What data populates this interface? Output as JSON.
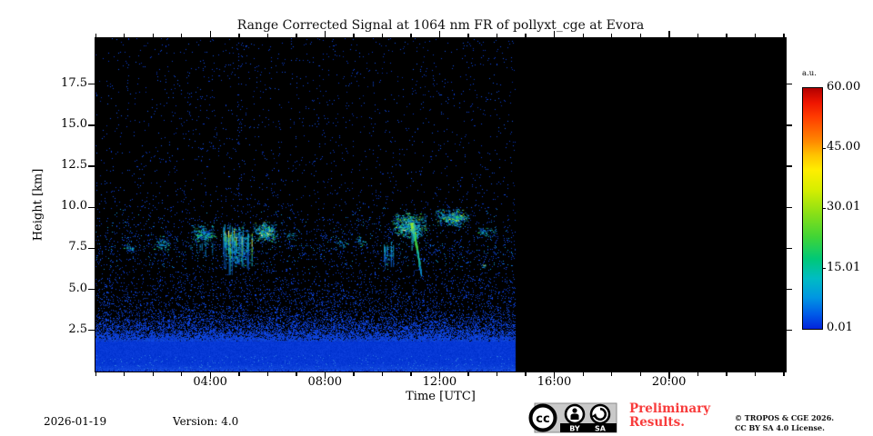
{
  "figure": {
    "footer": {
      "date": "2026-01-19",
      "version": "Version: 4.0",
      "preliminary": "Preliminary Results.",
      "copyright_line1": "© TROPOS & CGE 2026.",
      "copyright_line2": "CC BY SA 4.0 License.",
      "badge": {
        "cc": "cc",
        "by": "BY",
        "sa": "SA"
      }
    }
  },
  "chart_data": {
    "type": "heatmap",
    "title": "Range Corrected Signal at 1064 nm FR of pollyxt_cge at Evora",
    "x_axis": {
      "label": "Time [UTC]",
      "range_hours": [
        0,
        24.07
      ],
      "minor_tick_step_hours": 1,
      "major_ticks": [
        {
          "hour": 4,
          "label": "04:00"
        },
        {
          "hour": 8,
          "label": "08:00"
        },
        {
          "hour": 12,
          "label": "12:00"
        },
        {
          "hour": 16,
          "label": "16:00"
        },
        {
          "hour": 20,
          "label": "20:00"
        }
      ]
    },
    "y_axis": {
      "label": "Height [km]",
      "range_km": [
        0,
        20.3
      ],
      "ticks": [
        {
          "km": 2.5,
          "label": "2.5"
        },
        {
          "km": 5.0,
          "label": "5.0"
        },
        {
          "km": 7.5,
          "label": "7.5"
        },
        {
          "km": 10.0,
          "label": "10.0"
        },
        {
          "km": 12.5,
          "label": "12.5"
        },
        {
          "km": 15.0,
          "label": "15.0"
        },
        {
          "km": 17.5,
          "label": "17.5"
        }
      ]
    },
    "colorbar": {
      "label": "a.u.",
      "colormap": "jet",
      "ticks": [
        {
          "value": 60.0,
          "label": "60.00"
        },
        {
          "value": 45.0,
          "label": "45.00"
        },
        {
          "value": 30.01,
          "label": "30.01"
        },
        {
          "value": 15.01,
          "label": "15.01"
        },
        {
          "value": 0.01,
          "label": "0.01"
        }
      ]
    },
    "measurement": {
      "data_start_hour": 0.0,
      "data_end_hour": 14.67,
      "no_data_note": "black (no data) from ~14:40 UTC to 24:00 UTC",
      "boundary_layer": {
        "solid_top_km": 1.85,
        "speckle_top_km": 3.6,
        "description": "dense near-surface blue signal, solid below ~1.9 km, speckled fade up to ~3.6 km"
      },
      "noise": {
        "description": "random blue speckle noise over black, density increases toward ground",
        "upper_density": 0.018,
        "aerosol_band_km": [
          6.2,
          10.0
        ]
      },
      "artifact_columns_hours": [
        4.97,
        5.08
      ],
      "features": [
        {
          "kind": "blob",
          "t0": 0.95,
          "t1": 1.45,
          "h0": 7.2,
          "h1": 7.9,
          "bright": 0.25,
          "dens": 0.15
        },
        {
          "kind": "blob",
          "t0": 2.0,
          "t1": 2.6,
          "h0": 7.3,
          "h1": 8.3,
          "bright": 0.35,
          "dens": 0.22
        },
        {
          "kind": "blob",
          "t0": 3.25,
          "t1": 4.25,
          "h0": 7.7,
          "h1": 9.0,
          "bright": 0.45,
          "dens": 0.28,
          "wisps": 5
        },
        {
          "kind": "streaks",
          "t0": 4.45,
          "t1": 5.5,
          "h0": 6.2,
          "h1": 9.0,
          "bright": 0.9,
          "dens": 0.2,
          "nstreaks": 32
        },
        {
          "kind": "blob",
          "t0": 5.45,
          "t1": 6.35,
          "h0": 7.8,
          "h1": 9.2,
          "bright": 0.7,
          "dens": 0.4,
          "specks": 12
        },
        {
          "kind": "blob",
          "t0": 6.55,
          "t1": 6.95,
          "h0": 8.0,
          "h1": 8.6,
          "bright": 0.3,
          "dens": 0.12
        },
        {
          "kind": "blob",
          "t0": 8.3,
          "t1": 8.75,
          "h0": 7.4,
          "h1": 8.05,
          "bright": 0.3,
          "dens": 0.12
        },
        {
          "kind": "blob",
          "t0": 9.0,
          "t1": 9.45,
          "h0": 7.6,
          "h1": 8.3,
          "bright": 0.3,
          "dens": 0.12
        },
        {
          "kind": "streaks",
          "t0": 10.05,
          "t1": 10.4,
          "h0": 6.4,
          "h1": 7.9,
          "bright": 0.35,
          "dens": 0.1,
          "nstreaks": 7
        },
        {
          "kind": "blob",
          "t0": 10.3,
          "t1": 11.6,
          "h0": 8.1,
          "h1": 9.7,
          "bright": 0.75,
          "dens": 0.45,
          "specks": 10
        },
        {
          "kind": "virga",
          "t0": 11.0,
          "t1": 11.35,
          "h0": 5.9,
          "h1": 9.05,
          "bright": 0.9
        },
        {
          "kind": "blob",
          "t0": 11.8,
          "t1": 13.1,
          "h0": 8.8,
          "h1": 9.95,
          "bright": 0.7,
          "dens": 0.4,
          "specks": 8
        },
        {
          "kind": "blob",
          "t0": 13.25,
          "t1": 13.95,
          "h0": 8.2,
          "h1": 8.85,
          "bright": 0.4,
          "dens": 0.2
        },
        {
          "kind": "blob",
          "t0": 13.45,
          "t1": 13.6,
          "h0": 6.3,
          "h1": 6.6,
          "bright": 0.8,
          "dens": 0.3,
          "specks": 2
        }
      ]
    }
  }
}
